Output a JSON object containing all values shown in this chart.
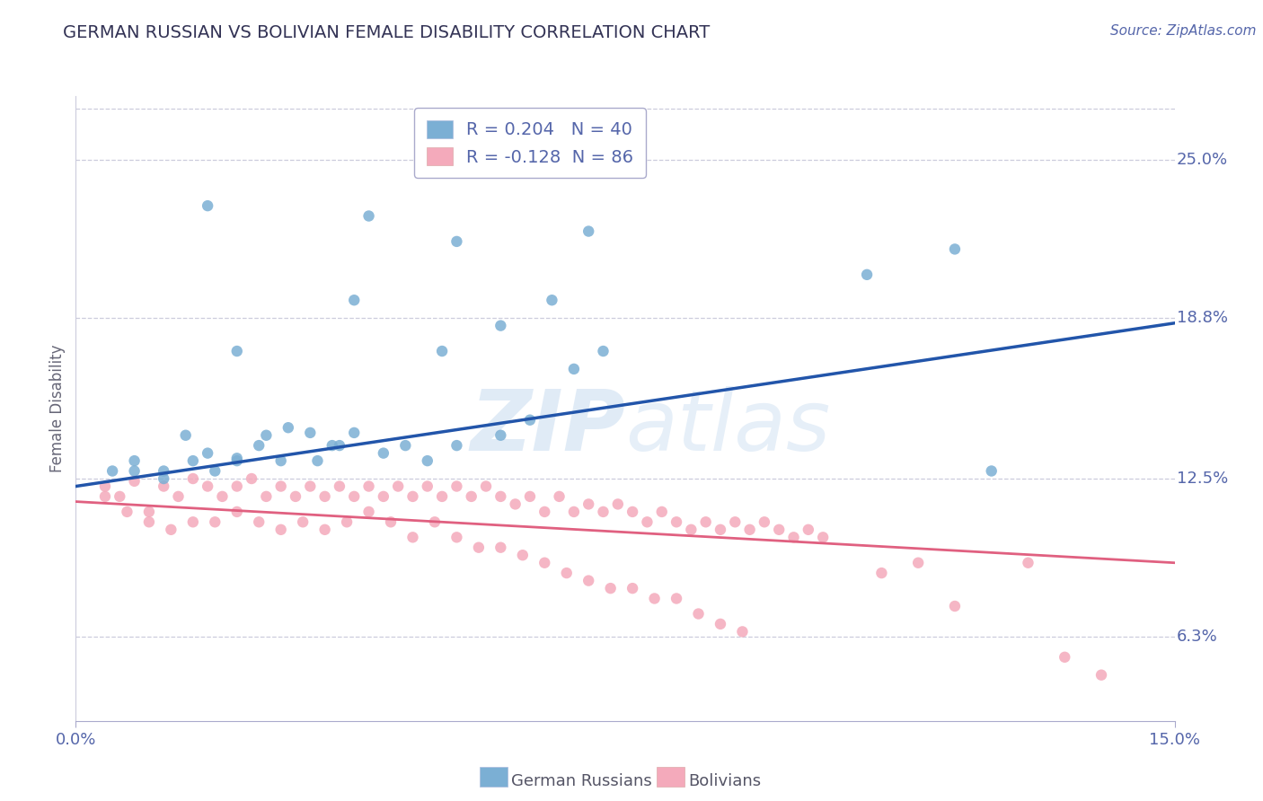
{
  "title": "GERMAN RUSSIAN VS BOLIVIAN FEMALE DISABILITY CORRELATION CHART",
  "source": "Source: ZipAtlas.com",
  "ylabel": "Female Disability",
  "x_min": 0.0,
  "x_max": 0.15,
  "y_min": 0.03,
  "y_max": 0.275,
  "right_yticks": [
    0.063,
    0.125,
    0.188,
    0.25
  ],
  "right_yticklabels": [
    "6.3%",
    "12.5%",
    "18.8%",
    "25.0%"
  ],
  "blue_R": 0.204,
  "blue_N": 40,
  "pink_R": -0.128,
  "pink_N": 86,
  "blue_color": "#7BAFD4",
  "pink_color": "#F4AABB",
  "blue_line_color": "#2255AA",
  "pink_line_color": "#E06080",
  "grid_color": "#CCCCDD",
  "background_color": "#FFFFFF",
  "title_color": "#333355",
  "watermark_color": "#D5E5F0",
  "legend_label_blue": "German Russians",
  "legend_label_pink": "Bolivians",
  "blue_line_x0": 0.0,
  "blue_line_y0": 0.122,
  "blue_line_x1": 0.15,
  "blue_line_y1": 0.186,
  "pink_line_x0": 0.0,
  "pink_line_y0": 0.116,
  "pink_line_x1": 0.15,
  "pink_line_y1": 0.092,
  "blue_scatter_x": [
    0.018,
    0.038,
    0.052,
    0.022,
    0.05,
    0.058,
    0.065,
    0.07,
    0.04,
    0.12,
    0.008,
    0.012,
    0.015,
    0.018,
    0.022,
    0.025,
    0.028,
    0.032,
    0.035,
    0.038,
    0.042,
    0.045,
    0.048,
    0.052,
    0.058,
    0.062,
    0.068,
    0.072,
    0.108,
    0.125,
    0.005,
    0.008,
    0.012,
    0.016,
    0.019,
    0.022,
    0.026,
    0.029,
    0.033,
    0.036
  ],
  "blue_scatter_y": [
    0.232,
    0.195,
    0.218,
    0.175,
    0.175,
    0.185,
    0.195,
    0.222,
    0.228,
    0.215,
    0.132,
    0.128,
    0.142,
    0.135,
    0.133,
    0.138,
    0.132,
    0.143,
    0.138,
    0.143,
    0.135,
    0.138,
    0.132,
    0.138,
    0.142,
    0.148,
    0.168,
    0.175,
    0.205,
    0.128,
    0.128,
    0.128,
    0.125,
    0.132,
    0.128,
    0.132,
    0.142,
    0.145,
    0.132,
    0.138
  ],
  "pink_scatter_x": [
    0.004,
    0.006,
    0.008,
    0.01,
    0.012,
    0.014,
    0.016,
    0.018,
    0.02,
    0.022,
    0.024,
    0.026,
    0.028,
    0.03,
    0.032,
    0.034,
    0.036,
    0.038,
    0.04,
    0.042,
    0.044,
    0.046,
    0.048,
    0.05,
    0.052,
    0.054,
    0.056,
    0.058,
    0.06,
    0.062,
    0.064,
    0.066,
    0.068,
    0.07,
    0.072,
    0.074,
    0.076,
    0.078,
    0.08,
    0.082,
    0.084,
    0.086,
    0.088,
    0.09,
    0.092,
    0.094,
    0.096,
    0.098,
    0.1,
    0.102,
    0.004,
    0.007,
    0.01,
    0.013,
    0.016,
    0.019,
    0.022,
    0.025,
    0.028,
    0.031,
    0.034,
    0.037,
    0.04,
    0.043,
    0.046,
    0.049,
    0.052,
    0.055,
    0.058,
    0.061,
    0.064,
    0.067,
    0.07,
    0.073,
    0.076,
    0.079,
    0.082,
    0.085,
    0.088,
    0.091,
    0.11,
    0.115,
    0.12,
    0.13,
    0.135,
    0.14
  ],
  "pink_scatter_y": [
    0.122,
    0.118,
    0.124,
    0.112,
    0.122,
    0.118,
    0.125,
    0.122,
    0.118,
    0.122,
    0.125,
    0.118,
    0.122,
    0.118,
    0.122,
    0.118,
    0.122,
    0.118,
    0.122,
    0.118,
    0.122,
    0.118,
    0.122,
    0.118,
    0.122,
    0.118,
    0.122,
    0.118,
    0.115,
    0.118,
    0.112,
    0.118,
    0.112,
    0.115,
    0.112,
    0.115,
    0.112,
    0.108,
    0.112,
    0.108,
    0.105,
    0.108,
    0.105,
    0.108,
    0.105,
    0.108,
    0.105,
    0.102,
    0.105,
    0.102,
    0.118,
    0.112,
    0.108,
    0.105,
    0.108,
    0.108,
    0.112,
    0.108,
    0.105,
    0.108,
    0.105,
    0.108,
    0.112,
    0.108,
    0.102,
    0.108,
    0.102,
    0.098,
    0.098,
    0.095,
    0.092,
    0.088,
    0.085,
    0.082,
    0.082,
    0.078,
    0.078,
    0.072,
    0.068,
    0.065,
    0.088,
    0.092,
    0.075,
    0.092,
    0.055,
    0.048
  ]
}
